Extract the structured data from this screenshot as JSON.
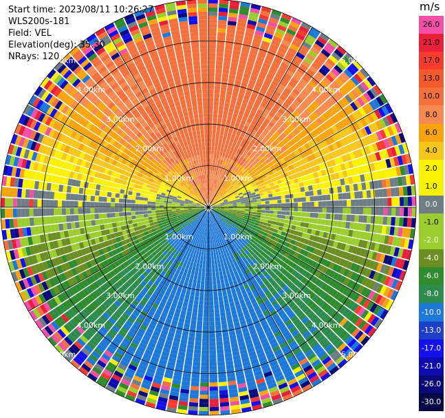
{
  "header": {
    "start_time": "Start time: 2023/08/11 10:26:27",
    "instrument": "WLS200s-181",
    "field": "Field: VEL",
    "elevation": "Elevation(deg): 35.30",
    "nrays": "NRays: 120"
  },
  "colorbar": {
    "unit": "m/s",
    "ticks": [
      "26.0",
      "21.0",
      "17.0",
      "13.0",
      "10.0",
      "8.0",
      "6.0",
      "4.0",
      "2.0",
      "1.0",
      "0.0",
      "-1.0",
      "-2.0",
      "-4.0",
      "-6.0",
      "-8.0",
      "-10.0",
      "-13.0",
      "-17.0",
      "-21.0",
      "-26.0",
      "-30.0"
    ],
    "colors": [
      "#f24fa6",
      "#e8203a",
      "#f73b2e",
      "#f55a2a",
      "#f4703d",
      "#f68a50",
      "#f7a40f",
      "#f7c61c",
      "#f8f200",
      "#f8f200",
      "#6f7d85",
      "#9ccd2e",
      "#9ccd2e",
      "#6b8e23",
      "#2e8b2e",
      "#2e8b4e",
      "#1e78d8",
      "#1e3fc8",
      "#1410f0",
      "#0c0cb0",
      "#0a0a7a",
      "#070745"
    ]
  },
  "chart_data": {
    "type": "heatmap",
    "projection": "PPI (plan position indicator), polar",
    "field": "VEL",
    "units": "m/s",
    "range_rings_km": [
      1.0,
      2.0,
      3.0,
      4.0,
      5.0
    ],
    "ring_labels": [
      "1.00km",
      "2.00km",
      "3.00km",
      "4.00km",
      "5.00km"
    ],
    "valid_range_km": 4.5,
    "rays": 120,
    "pattern": "velocity changes with direction: about +10 m/s to the north, about 0 m/s to the east and west, about -10 m/s to the south; noisy random colors beyond about 4.5 km"
  }
}
